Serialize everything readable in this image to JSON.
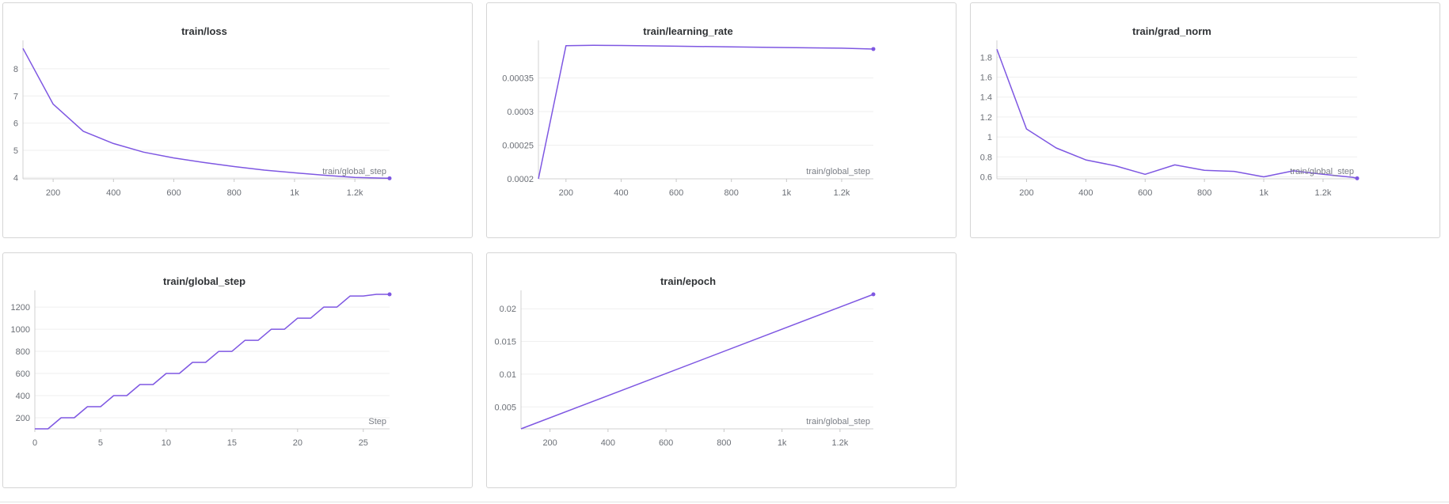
{
  "charts": [
    {
      "type": "line",
      "title": "train/loss",
      "xlabel": "train/global_step",
      "xlim": [
        100,
        1315
      ],
      "ylim": [
        3.95,
        8.9
      ],
      "xticks": [
        200,
        400,
        600,
        800,
        1000,
        1200
      ],
      "xtick_labels": [
        "200",
        "400",
        "600",
        "800",
        "1k",
        "1.2k"
      ],
      "yticks": [
        4,
        5,
        6,
        7,
        8
      ],
      "ytick_labels": [
        "4",
        "5",
        "6",
        "7",
        "8"
      ],
      "grid": true,
      "color": "#7e57e2",
      "series": [
        {
          "x": [
            100,
            200,
            300,
            400,
            500,
            600,
            700,
            800,
            900,
            1000,
            1100,
            1200,
            1300,
            1315
          ],
          "y": [
            8.75,
            6.7,
            5.7,
            5.25,
            4.93,
            4.72,
            4.55,
            4.4,
            4.27,
            4.17,
            4.08,
            4.0,
            3.97,
            3.97
          ]
        }
      ]
    },
    {
      "type": "line",
      "title": "train/learning_rate",
      "xlabel": "train/global_step",
      "xlim": [
        100,
        1315
      ],
      "ylim": [
        0.0002,
        0.0004
      ],
      "xticks": [
        200,
        400,
        600,
        800,
        1000,
        1200
      ],
      "xtick_labels": [
        "200",
        "400",
        "600",
        "800",
        "1k",
        "1.2k"
      ],
      "yticks": [
        0.0002,
        0.00025,
        0.0003,
        0.00035
      ],
      "ytick_labels": [
        "0.0002",
        "0.00025",
        "0.0003",
        "0.00035"
      ],
      "grid": true,
      "color": "#7e57e2",
      "series": [
        {
          "x": [
            100,
            200,
            300,
            400,
            600,
            800,
            1000,
            1200,
            1315
          ],
          "y": [
            0.0002,
            0.000398,
            0.0003985,
            0.0003982,
            0.0003972,
            0.0003962,
            0.0003952,
            0.0003942,
            0.000393
          ]
        }
      ]
    },
    {
      "type": "line",
      "title": "train/grad_norm",
      "xlabel": "train/global_step",
      "xlim": [
        100,
        1315
      ],
      "ylim": [
        0.58,
        1.93
      ],
      "xticks": [
        200,
        400,
        600,
        800,
        1000,
        1200
      ],
      "xtick_labels": [
        "200",
        "400",
        "600",
        "800",
        "1k",
        "1.2k"
      ],
      "yticks": [
        0.6,
        0.8,
        1,
        1.2,
        1.4,
        1.6,
        1.8
      ],
      "ytick_labels": [
        "0.6",
        "0.8",
        "1",
        "1.2",
        "1.4",
        "1.6",
        "1.8"
      ],
      "grid": true,
      "color": "#7e57e2",
      "series": [
        {
          "x": [
            100,
            200,
            300,
            400,
            500,
            600,
            700,
            800,
            900,
            1000,
            1100,
            1200,
            1300,
            1315
          ],
          "y": [
            1.88,
            1.08,
            0.89,
            0.77,
            0.71,
            0.625,
            0.72,
            0.665,
            0.655,
            0.6,
            0.66,
            0.625,
            0.595,
            0.585
          ]
        }
      ]
    },
    {
      "type": "line",
      "title": "train/global_step",
      "xlabel": "Step",
      "xlim": [
        0,
        27
      ],
      "ylim": [
        100,
        1315
      ],
      "xticks": [
        0,
        5,
        10,
        15,
        20,
        25
      ],
      "xtick_labels": [
        "0",
        "5",
        "10",
        "15",
        "20",
        "25"
      ],
      "yticks": [
        200,
        400,
        600,
        800,
        1000,
        1200
      ],
      "ytick_labels": [
        "200",
        "400",
        "600",
        "800",
        "1000",
        "1200"
      ],
      "grid": true,
      "color": "#7e57e2",
      "series": [
        {
          "x": [
            0,
            1,
            2,
            3,
            4,
            5,
            6,
            7,
            8,
            9,
            10,
            11,
            12,
            13,
            14,
            15,
            16,
            17,
            18,
            19,
            20,
            21,
            22,
            23,
            24,
            25,
            26,
            27
          ],
          "y": [
            100,
            100,
            200,
            200,
            300,
            300,
            400,
            400,
            500,
            500,
            600,
            600,
            700,
            700,
            800,
            800,
            900,
            900,
            1000,
            1000,
            1100,
            1100,
            1200,
            1200,
            1300,
            1300,
            1315,
            1315
          ]
        }
      ]
    },
    {
      "type": "line",
      "title": "train/epoch",
      "xlabel": "train/global_step",
      "xlim": [
        100,
        1315
      ],
      "ylim": [
        0.00165,
        0.0222
      ],
      "xticks": [
        200,
        400,
        600,
        800,
        1000,
        1200
      ],
      "xtick_labels": [
        "200",
        "400",
        "600",
        "800",
        "1k",
        "1.2k"
      ],
      "yticks": [
        0.005,
        0.01,
        0.015,
        0.02
      ],
      "ytick_labels": [
        "0.005",
        "0.01",
        "0.015",
        "0.02"
      ],
      "grid": true,
      "color": "#7e57e2",
      "series": [
        {
          "x": [
            100,
            1315
          ],
          "y": [
            0.00165,
            0.0222
          ]
        }
      ]
    }
  ]
}
